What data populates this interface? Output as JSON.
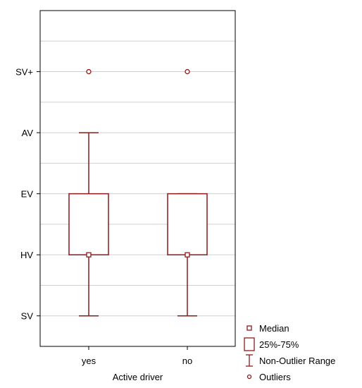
{
  "chart_data": {
    "type": "boxplot",
    "xlabel": "Active driver",
    "categories": [
      "yes",
      "no"
    ],
    "y_levels": [
      "SV",
      "HV",
      "EV",
      "AV",
      "SV+"
    ],
    "ylim": [
      -0.5,
      5.0
    ],
    "y_gridlines": [
      -0.5,
      0,
      0.5,
      1,
      1.5,
      2,
      2.5,
      3,
      3.5,
      4,
      4.5,
      5
    ],
    "grid": true,
    "boxes": [
      {
        "category": "yes",
        "median": 1,
        "q1": 1,
        "q3": 2,
        "whisker_low": 0,
        "whisker_high": 3,
        "outliers": [
          4
        ]
      },
      {
        "category": "no",
        "median": 1,
        "q1": 1,
        "q3": 2,
        "whisker_low": 0,
        "whisker_high": 2,
        "outliers": [
          4
        ]
      }
    ],
    "legend": {
      "position": "bottom-right",
      "entries": [
        "Median",
        "25%-75%",
        "Non-Outlier Range",
        "Outliers"
      ]
    },
    "color": "#8b1a1a"
  }
}
